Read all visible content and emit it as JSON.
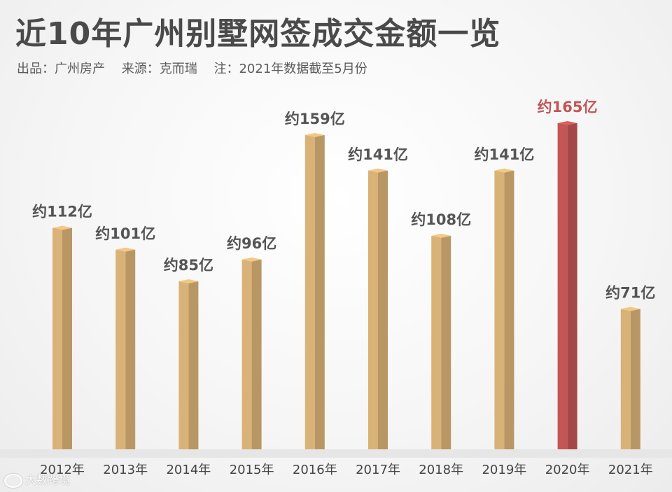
{
  "title": "近10年广州别墅网签成交金额一览",
  "subtitle": {
    "source_label": "出品：广州房产",
    "origin_label": "来源：克而瑞",
    "note_label": "注：2021年数据截至5月份"
  },
  "watermark": "大数跨境",
  "colors": {
    "bar": "#d9b277",
    "bar_highlight": "#c25556",
    "label": "#555555",
    "label_highlight": "#c25556",
    "title": "#4a4a4a"
  },
  "chart_data": {
    "type": "bar",
    "title": "近10年广州别墅网签成交金额一览",
    "categories": [
      "2012年",
      "2013年",
      "2014年",
      "2015年",
      "2016年",
      "2017年",
      "2018年",
      "2019年",
      "2020年",
      "2021年"
    ],
    "values": [
      112,
      101,
      85,
      96,
      159,
      141,
      108,
      141,
      165,
      71
    ],
    "data_labels": [
      "约112亿",
      "约101亿",
      "约85亿",
      "约96亿",
      "约159亿",
      "约141亿",
      "约108亿",
      "约141亿",
      "约165亿",
      "约71亿"
    ],
    "highlight_index": 8,
    "unit": "亿",
    "ylim": [
      0,
      165
    ],
    "grid": false,
    "legend": "none"
  }
}
